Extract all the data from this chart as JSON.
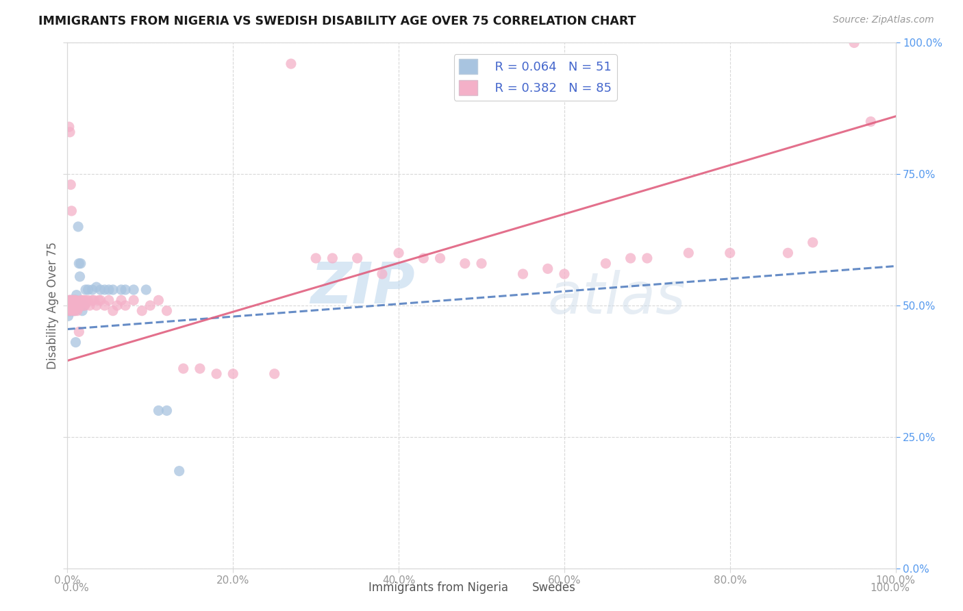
{
  "title": "IMMIGRANTS FROM NIGERIA VS SWEDISH DISABILITY AGE OVER 75 CORRELATION CHART",
  "source": "Source: ZipAtlas.com",
  "ylabel": "Disability Age Over 75",
  "legend_label1": "Immigrants from Nigeria",
  "legend_label2": "Swedes",
  "legend_r1": "R = 0.064",
  "legend_n1": "N = 51",
  "legend_r2": "R = 0.382",
  "legend_n2": "N = 85",
  "color_blue": "#a8c4e0",
  "color_pink": "#f4b0c8",
  "color_blue_line": "#5580c0",
  "color_pink_line": "#e06080",
  "watermark_color": "#c8dff0",
  "bg_color": "#ffffff",
  "grid_color": "#d8d8d8",
  "nigeria_x": [
    0.001,
    0.002,
    0.002,
    0.003,
    0.003,
    0.003,
    0.004,
    0.004,
    0.004,
    0.005,
    0.005,
    0.005,
    0.006,
    0.006,
    0.006,
    0.006,
    0.007,
    0.007,
    0.007,
    0.008,
    0.008,
    0.008,
    0.009,
    0.009,
    0.009,
    0.01,
    0.01,
    0.01,
    0.011,
    0.012,
    0.013,
    0.014,
    0.015,
    0.016,
    0.018,
    0.02,
    0.022,
    0.025,
    0.03,
    0.035,
    0.04,
    0.045,
    0.05,
    0.055,
    0.065,
    0.07,
    0.08,
    0.095,
    0.11,
    0.12,
    0.135
  ],
  "nigeria_y": [
    0.48,
    0.49,
    0.5,
    0.51,
    0.49,
    0.505,
    0.495,
    0.5,
    0.51,
    0.5,
    0.51,
    0.49,
    0.5,
    0.505,
    0.495,
    0.49,
    0.5,
    0.51,
    0.49,
    0.5,
    0.505,
    0.495,
    0.51,
    0.5,
    0.49,
    0.43,
    0.5,
    0.51,
    0.52,
    0.5,
    0.65,
    0.58,
    0.555,
    0.58,
    0.49,
    0.5,
    0.53,
    0.53,
    0.53,
    0.535,
    0.53,
    0.53,
    0.53,
    0.53,
    0.53,
    0.53,
    0.53,
    0.53,
    0.3,
    0.3,
    0.185
  ],
  "swedes_x": [
    0.001,
    0.002,
    0.002,
    0.003,
    0.003,
    0.003,
    0.004,
    0.004,
    0.005,
    0.005,
    0.006,
    0.006,
    0.006,
    0.007,
    0.007,
    0.007,
    0.008,
    0.008,
    0.009,
    0.009,
    0.01,
    0.01,
    0.011,
    0.012,
    0.012,
    0.013,
    0.014,
    0.015,
    0.016,
    0.017,
    0.018,
    0.019,
    0.02,
    0.021,
    0.022,
    0.023,
    0.025,
    0.027,
    0.03,
    0.032,
    0.035,
    0.038,
    0.04,
    0.045,
    0.05,
    0.055,
    0.06,
    0.065,
    0.07,
    0.08,
    0.09,
    0.1,
    0.11,
    0.12,
    0.14,
    0.16,
    0.18,
    0.2,
    0.25,
    0.27,
    0.3,
    0.32,
    0.35,
    0.38,
    0.4,
    0.43,
    0.45,
    0.48,
    0.5,
    0.55,
    0.58,
    0.6,
    0.65,
    0.68,
    0.7,
    0.75,
    0.8,
    0.87,
    0.9,
    0.95,
    0.002,
    0.003,
    0.004,
    0.005,
    0.97
  ],
  "swedes_y": [
    0.505,
    0.49,
    0.51,
    0.495,
    0.5,
    0.51,
    0.49,
    0.505,
    0.5,
    0.51,
    0.495,
    0.5,
    0.51,
    0.49,
    0.5,
    0.51,
    0.495,
    0.5,
    0.51,
    0.49,
    0.5,
    0.51,
    0.495,
    0.49,
    0.5,
    0.495,
    0.45,
    0.5,
    0.51,
    0.505,
    0.51,
    0.5,
    0.51,
    0.5,
    0.51,
    0.505,
    0.51,
    0.5,
    0.51,
    0.51,
    0.5,
    0.51,
    0.51,
    0.5,
    0.51,
    0.49,
    0.5,
    0.51,
    0.5,
    0.51,
    0.49,
    0.5,
    0.51,
    0.49,
    0.38,
    0.38,
    0.37,
    0.37,
    0.37,
    0.96,
    0.59,
    0.59,
    0.59,
    0.56,
    0.6,
    0.59,
    0.59,
    0.58,
    0.58,
    0.56,
    0.57,
    0.56,
    0.58,
    0.59,
    0.59,
    0.6,
    0.6,
    0.6,
    0.62,
    1.0,
    0.84,
    0.83,
    0.73,
    0.68,
    0.85
  ],
  "blue_line_x0": 0.0,
  "blue_line_y0": 0.455,
  "blue_line_x1": 1.0,
  "blue_line_y1": 0.575,
  "pink_line_x0": 0.0,
  "pink_line_y0": 0.395,
  "pink_line_x1": 1.0,
  "pink_line_y1": 0.86,
  "xlim": [
    0.0,
    1.0
  ],
  "ylim": [
    0.0,
    1.0
  ],
  "xticks": [
    0.0,
    0.2,
    0.4,
    0.6,
    0.8,
    1.0
  ],
  "xticklabels": [
    "0.0%",
    "20.0%",
    "40.0%",
    "60.0%",
    "80.0%",
    "100.0%"
  ],
  "yticks": [
    0.0,
    0.25,
    0.5,
    0.75,
    1.0
  ],
  "yticklabels_right": [
    "0.0%",
    "25.0%",
    "50.0%",
    "75.0%",
    "100.0%"
  ]
}
